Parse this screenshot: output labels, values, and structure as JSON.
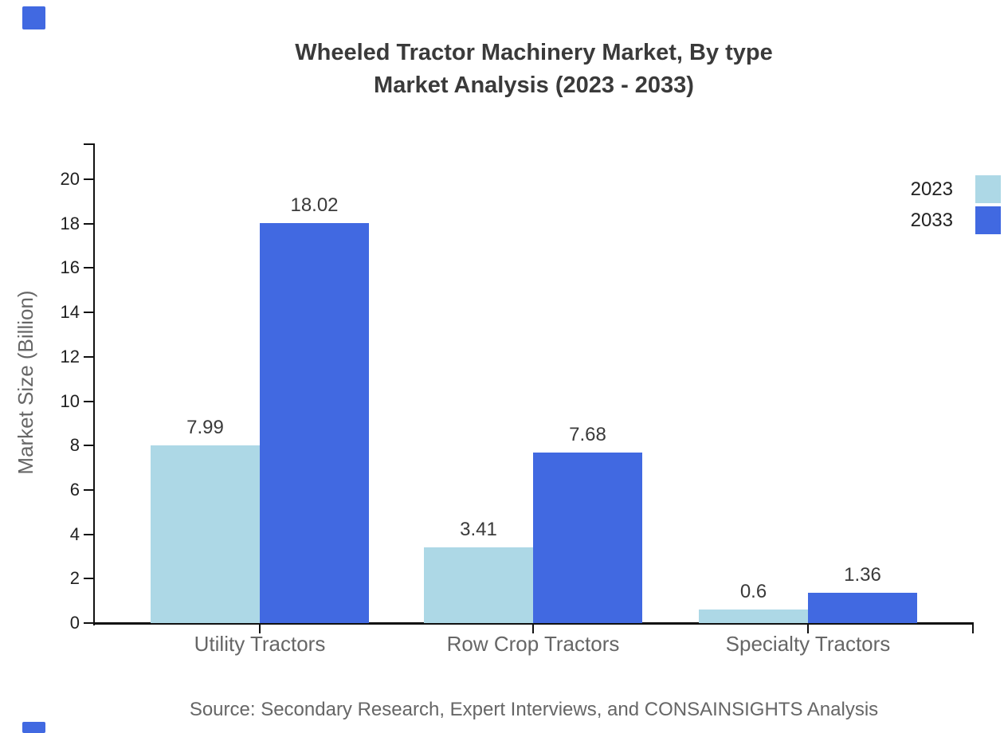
{
  "title": {
    "line1": "Wheeled Tractor Machinery Market, By type",
    "line2": "Market Analysis (2023 - 2033)"
  },
  "source_note": "Source: Secondary Research, Expert Interviews, and CONSAINSIGHTS Analysis",
  "decorations": {
    "corner_square_color": "#4169E1"
  },
  "axis_style": {
    "line_color": "#111111",
    "tick_label_color": "#1f1f1f",
    "category_label_color": "#666666",
    "value_label_color": "#3a3a3a"
  },
  "chart_data": {
    "type": "bar",
    "categories": [
      "Utility Tractors",
      "Row Crop Tractors",
      "Specialty Tractors"
    ],
    "series": [
      {
        "name": "2023",
        "color": "#ADD8E6",
        "values": [
          7.99,
          3.41,
          0.6
        ],
        "labels": [
          "7.99",
          "3.41",
          "0.6"
        ]
      },
      {
        "name": "2033",
        "color": "#4169E1",
        "values": [
          18.02,
          7.68,
          1.36
        ],
        "labels": [
          "18.02",
          "7.68",
          "1.36"
        ]
      }
    ],
    "title": "Wheeled Tractor Machinery Market, By type Market Analysis (2023 - 2033)",
    "xlabel": "",
    "ylabel": "Market Size (Billion)",
    "ylim": [
      0,
      21.6
    ],
    "yticks": [
      0,
      2,
      4,
      6,
      8,
      10,
      12,
      14,
      16,
      18,
      20
    ],
    "grid": false,
    "legend_position": "top-right",
    "value_labels_shown": true
  }
}
